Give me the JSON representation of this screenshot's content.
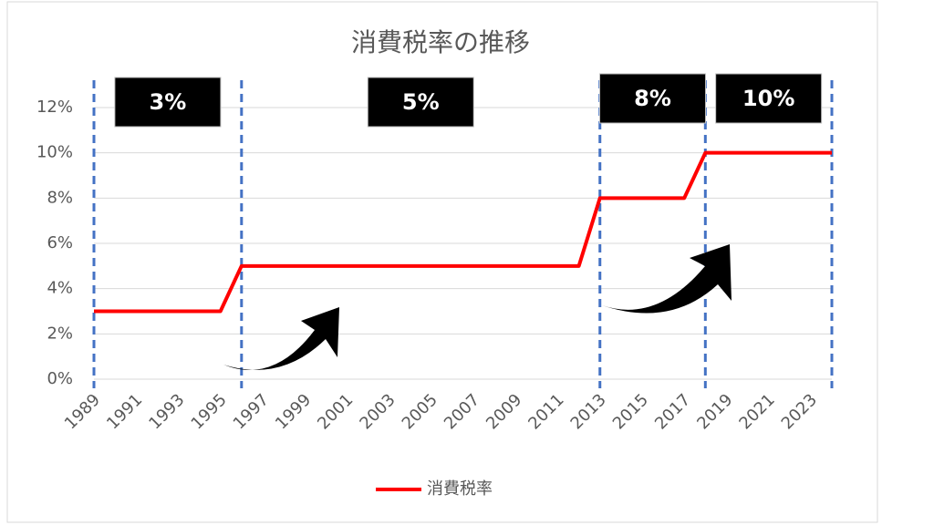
{
  "chart_data": {
    "type": "line",
    "title": "消費税率の推移",
    "categories": [
      "1989",
      null,
      "1991",
      null,
      "1993",
      null,
      "1995",
      null,
      "1997",
      null,
      "1999",
      null,
      "2001",
      null,
      "2003",
      null,
      "2005",
      null,
      "2007",
      null,
      "2009",
      null,
      "2011",
      null,
      "2013",
      null,
      "2015",
      null,
      "2017",
      null,
      "2019",
      null,
      "2021",
      null,
      "2023",
      null
    ],
    "series": [
      {
        "name": "消費税率",
        "color": "#ff0000",
        "values": [
          3,
          3,
          3,
          3,
          3,
          3,
          3,
          5,
          5,
          5,
          5,
          5,
          5,
          5,
          5,
          5,
          5,
          5,
          5,
          5,
          5,
          5,
          5,
          5,
          8,
          8,
          8,
          8,
          8,
          10,
          10,
          10,
          10,
          10,
          10,
          10
        ]
      }
    ],
    "ylim": [
      0,
      12
    ],
    "yticks": [
      {
        "value": 0,
        "label": "0%"
      },
      {
        "value": 2,
        "label": "2%"
      },
      {
        "value": 4,
        "label": "4%"
      },
      {
        "value": 6,
        "label": "6%"
      },
      {
        "value": 8,
        "label": "8%"
      },
      {
        "value": 10,
        "label": "10%"
      },
      {
        "value": 12,
        "label": "12%"
      }
    ],
    "grid": true,
    "annotations": [
      "3%",
      "5%",
      "8%",
      "10%"
    ]
  }
}
